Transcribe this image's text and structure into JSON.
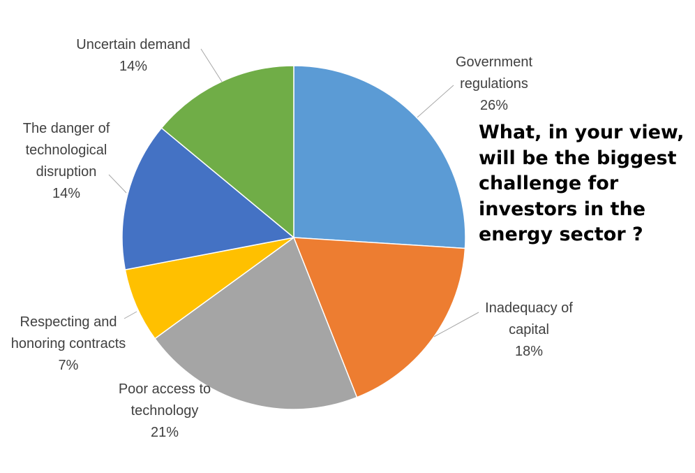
{
  "chart_data": {
    "type": "pie",
    "title": "What, in your view,\nwill be the biggest\nchallenge for\ninvestors in the\nenergy sector ?",
    "legend": "none",
    "slices": [
      {
        "label": "Government regulations",
        "label_lines": [
          "Government",
          "regulations"
        ],
        "value_label": "26%",
        "value": 26,
        "color": "#5B9BD5"
      },
      {
        "label": "Inadequacy of capital",
        "label_lines": [
          "Inadequacy of",
          "capital"
        ],
        "value_label": "18%",
        "value": 18,
        "color": "#ED7D31"
      },
      {
        "label": "Poor access to technology",
        "label_lines": [
          "Poor access to",
          "technology"
        ],
        "value_label": "21%",
        "value": 21,
        "color": "#A5A5A5"
      },
      {
        "label": "Respecting and honoring contracts",
        "label_lines": [
          "Respecting and",
          "honoring contracts"
        ],
        "value_label": "7%",
        "value": 7,
        "color": "#FFC000"
      },
      {
        "label": "The danger of technological disruption",
        "label_lines": [
          "The danger of",
          "technological",
          "disruption"
        ],
        "value_label": "14%",
        "value": 14,
        "color": "#4472C4"
      },
      {
        "label": "Uncertain demand",
        "label_lines": [
          "Uncertain demand"
        ],
        "value_label": "14%",
        "value": 14,
        "color": "#70AD47"
      }
    ]
  }
}
